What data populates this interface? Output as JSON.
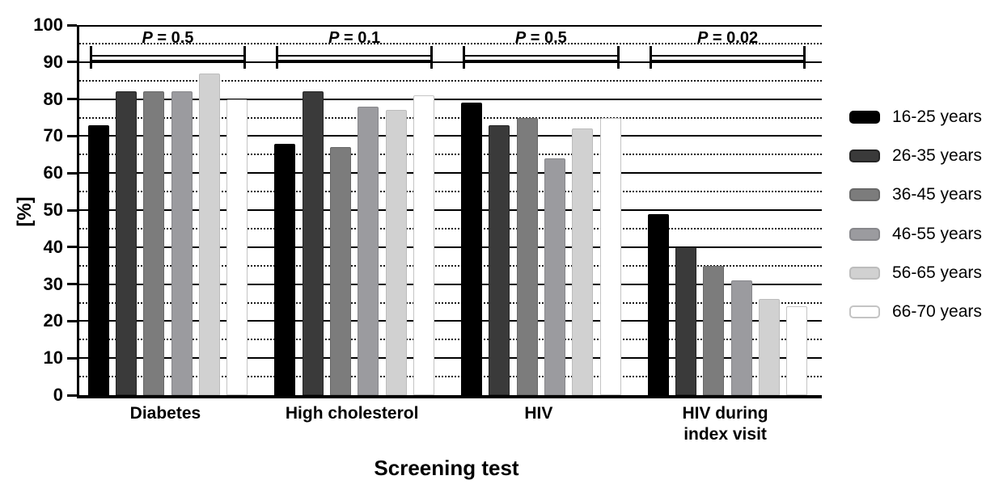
{
  "chart_data": {
    "type": "bar",
    "title": "",
    "xlabel": "Screening test",
    "ylabel": "[%]",
    "ylim": [
      0,
      100
    ],
    "y_major_tick_step": 10,
    "y_minor_tick_step": 5,
    "y_tick_labels": [
      "0",
      "10",
      "20",
      "30",
      "40",
      "50",
      "60",
      "70",
      "80",
      "90",
      "100"
    ],
    "grid": "horizontal: solid major lines every 10, dotted minor lines every 5",
    "legend_position": "right",
    "categories": [
      "Diabetes",
      "High cholesterol",
      "HIV",
      "HIV during\nindex visit"
    ],
    "series": [
      {
        "name": "16-25 years",
        "color": "#000000",
        "edge": "#000000",
        "values": [
          73,
          68,
          79,
          49
        ]
      },
      {
        "name": "26-35 years",
        "color": "#3a3a3a",
        "edge": "#242424",
        "values": [
          82,
          82,
          73,
          40
        ]
      },
      {
        "name": "36-45 years",
        "color": "#7c7c7c",
        "edge": "#686868",
        "values": [
          82,
          67,
          75,
          35
        ]
      },
      {
        "name": "46-55 years",
        "color": "#9b9b9f",
        "edge": "#87878b",
        "values": [
          82,
          78,
          64,
          31
        ]
      },
      {
        "name": "56-65 years",
        "color": "#d1d1d1",
        "edge": "#bcbcbc",
        "values": [
          87,
          77,
          72,
          26
        ]
      },
      {
        "name": "66-70 years",
        "color": "#ffffff",
        "edge": "#c4c4c4",
        "values": [
          80,
          81,
          75,
          24
        ]
      }
    ],
    "p_annotations": [
      {
        "category": "Diabetes",
        "label": "P = 0.5"
      },
      {
        "category": "High cholesterol",
        "label": "P = 0.1"
      },
      {
        "category": "HIV",
        "label": "P = 0.5"
      },
      {
        "category": "HIV during index visit",
        "label": "P = 0.02"
      }
    ]
  }
}
